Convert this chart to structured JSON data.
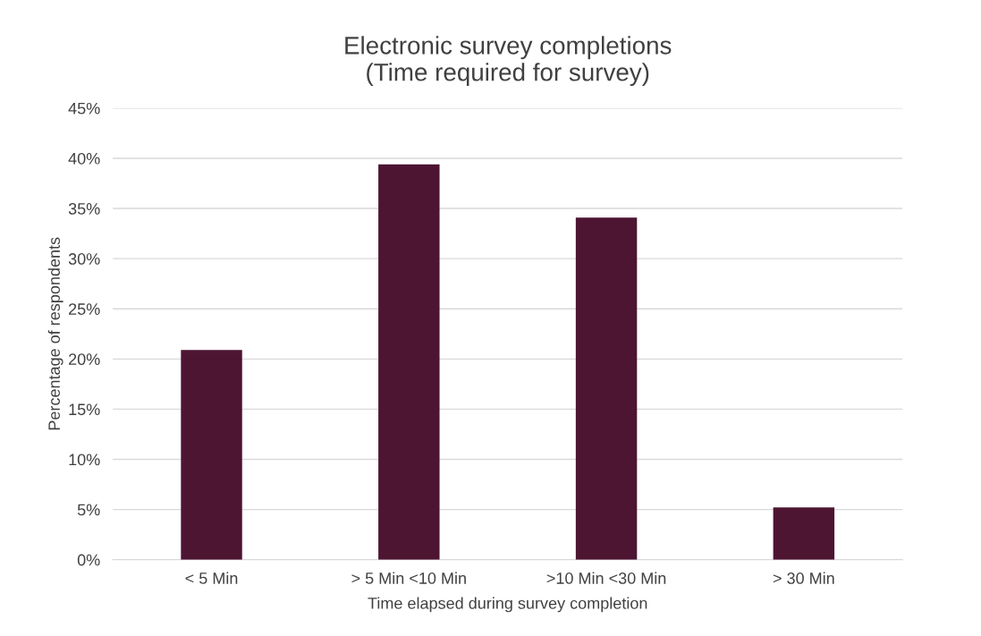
{
  "chart_data": {
    "type": "bar",
    "title": "Electronic survey completions\n(Time required for survey)",
    "xlabel": "Time elapsed during survey completion",
    "ylabel": "Percentage of respondents",
    "categories": [
      "< 5 Min",
      "> 5 Min <10 Min",
      ">10 Min <30 Min",
      "> 30 Min"
    ],
    "values": [
      20.9,
      39.4,
      34.1,
      5.2
    ],
    "color": "#4d1532",
    "ylim": [
      0,
      45
    ],
    "yticks": [
      {
        "value": 0,
        "label": "0%"
      },
      {
        "value": 5,
        "label": "5%"
      },
      {
        "value": 10,
        "label": "10%"
      },
      {
        "value": 15,
        "label": "15%"
      },
      {
        "value": 20,
        "label": "20%"
      },
      {
        "value": 25,
        "label": "25%"
      },
      {
        "value": 30,
        "label": "30%"
      },
      {
        "value": 35,
        "label": "35%"
      },
      {
        "value": 40,
        "label": "40%"
      },
      {
        "value": 45,
        "label": "45%"
      }
    ],
    "grid": "y",
    "legend": false
  }
}
